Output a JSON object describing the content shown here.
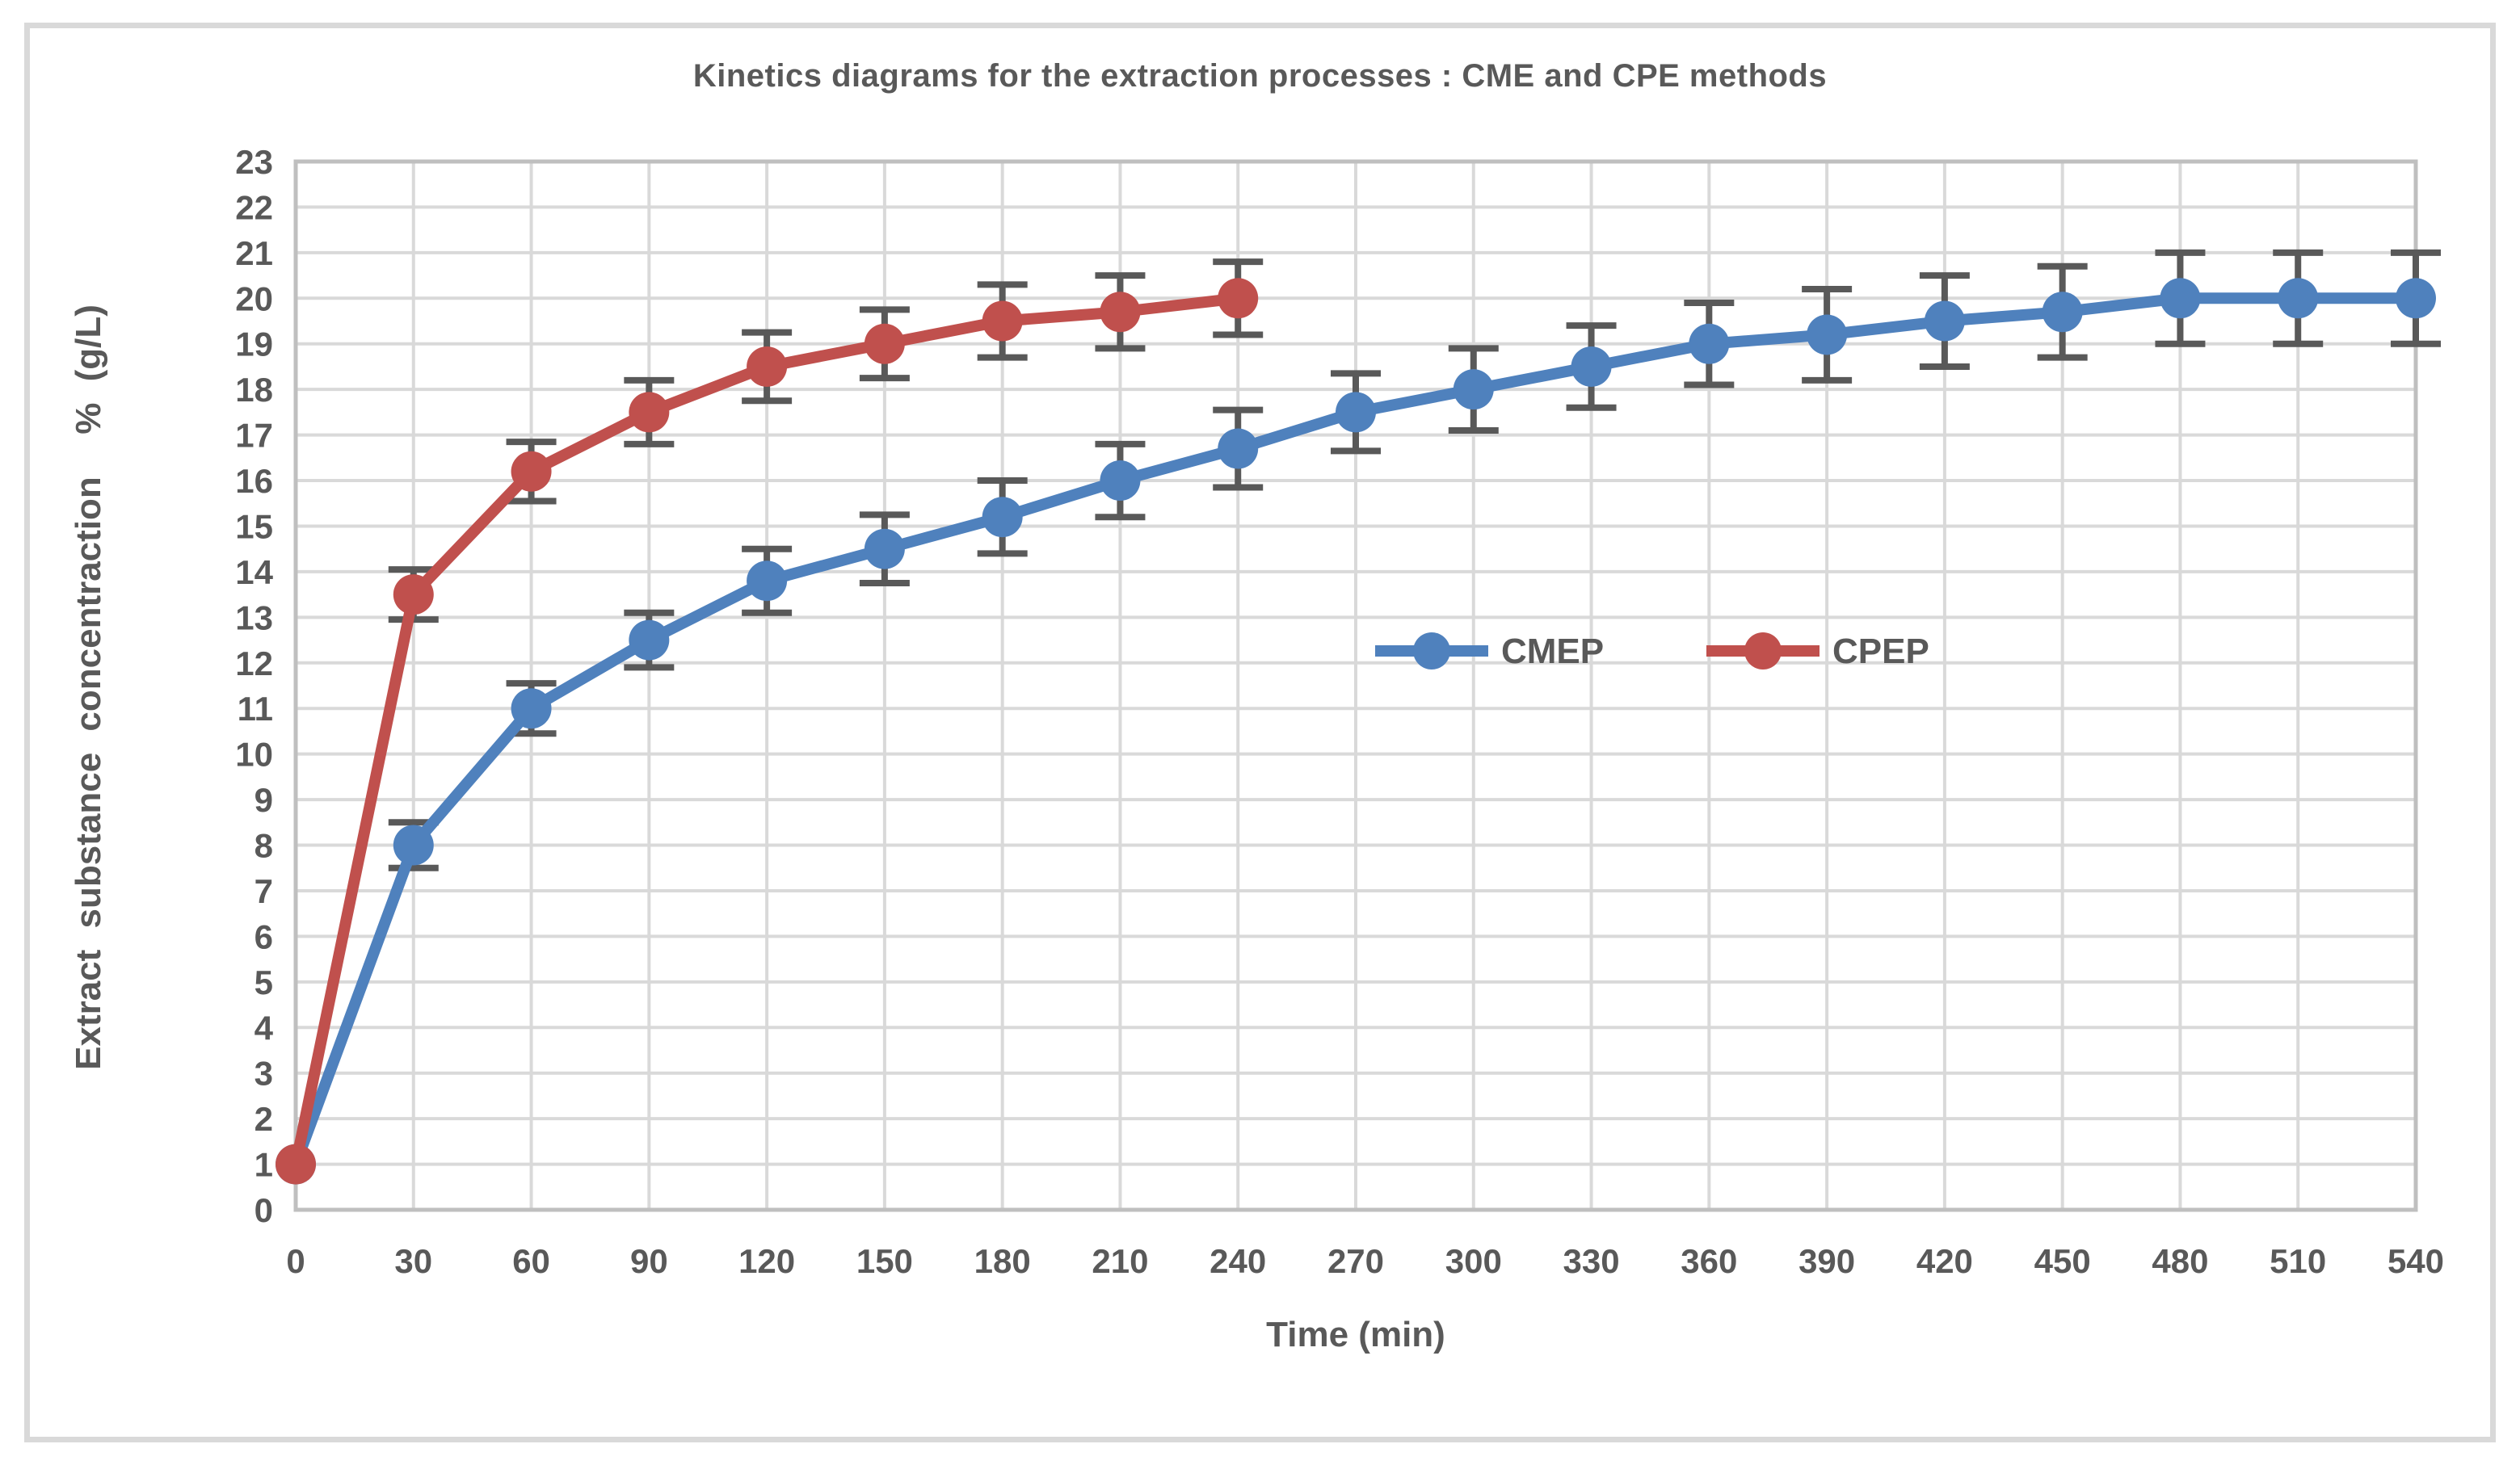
{
  "figure": {
    "background_color": "#ffffff",
    "frame_border_color": "#d9d9d9"
  },
  "chart_data": {
    "type": "line",
    "title": "Kinetics diagrams for the extraction processes : CME and CPE methods",
    "xlabel": "Time (min)",
    "ylabel": "Extract substance concentraction  % (g/L)",
    "xlim": [
      0,
      540
    ],
    "ylim": [
      0,
      23
    ],
    "x_ticks": [
      0,
      30,
      60,
      90,
      120,
      150,
      180,
      210,
      240,
      270,
      300,
      330,
      360,
      390,
      420,
      450,
      480,
      510,
      540
    ],
    "y_ticks": [
      0,
      1,
      2,
      3,
      4,
      5,
      6,
      7,
      8,
      9,
      10,
      11,
      12,
      13,
      14,
      15,
      16,
      17,
      18,
      19,
      20,
      21,
      22,
      23
    ],
    "grid": true,
    "legend_position": "inside-right-middle",
    "series": [
      {
        "name": "CMEP",
        "color": "#4f81bd",
        "marker": "circle",
        "x": [
          0,
          30,
          60,
          90,
          120,
          150,
          180,
          210,
          240,
          270,
          300,
          330,
          360,
          390,
          420,
          450,
          480,
          510,
          540
        ],
        "y": [
          1,
          8,
          11,
          12.5,
          13.8,
          14.5,
          15.2,
          16,
          16.7,
          17.5,
          18,
          18.5,
          19,
          19.2,
          19.5,
          19.7,
          20,
          20,
          20
        ],
        "yerr": [
          0,
          0.5,
          0.55,
          0.6,
          0.7,
          0.75,
          0.8,
          0.8,
          0.85,
          0.85,
          0.9,
          0.9,
          0.9,
          1,
          1,
          1,
          1,
          1,
          1
        ]
      },
      {
        "name": "CPEP",
        "color": "#c0504d",
        "marker": "circle",
        "x": [
          0,
          30,
          60,
          90,
          120,
          150,
          180,
          210,
          240
        ],
        "y": [
          1,
          13.5,
          16.2,
          17.5,
          18.5,
          19,
          19.5,
          19.7,
          20
        ],
        "yerr": [
          0,
          0.55,
          0.65,
          0.7,
          0.75,
          0.75,
          0.8,
          0.8,
          0.8
        ]
      }
    ],
    "style": {
      "gridline_color": "#d9d9d9",
      "plot_border_color": "#bfbfbf",
      "error_bar_color": "#595959",
      "text_color": "#595959",
      "tick_font_size": 42,
      "line_width": 14,
      "marker_radius": 25
    }
  }
}
